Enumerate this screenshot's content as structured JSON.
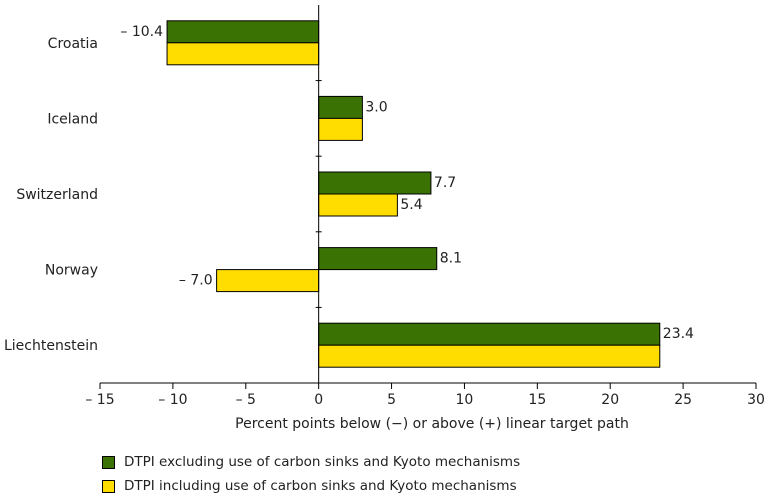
{
  "chart_data": {
    "type": "bar",
    "orientation": "horizontal",
    "categories": [
      "Croatia",
      "Iceland",
      "Switzerland",
      "Norway",
      "Liechtenstein"
    ],
    "series": [
      {
        "name": "DTPI excluding use of carbon sinks and Kyoto mechanisms",
        "color": "#3a7304",
        "values": [
          -10.4,
          3.0,
          7.7,
          8.1,
          23.4
        ],
        "labels": [
          "– 10.4",
          "3.0",
          "7.7",
          "8.1",
          "23.4"
        ]
      },
      {
        "name": "DTPI including use of carbon sinks and Kyoto mechanisms",
        "color": "#ffdd00",
        "values": [
          -10.4,
          3.0,
          5.4,
          -7.0,
          23.4
        ],
        "labels": [
          "",
          "",
          "5.4",
          "– 7.0",
          ""
        ]
      }
    ],
    "xlabel": "Percent points below (−) or above (+) linear target path",
    "xlim": [
      -15,
      30
    ],
    "xticks": [
      -15,
      -10,
      -5,
      0,
      5,
      10,
      15,
      20,
      25,
      30
    ],
    "xtick_labels": [
      "– 15",
      "– 10",
      "– 5",
      "0",
      "5",
      "10",
      "15",
      "20",
      "25",
      "30"
    ],
    "grid": false,
    "legend_position": "bottom"
  }
}
